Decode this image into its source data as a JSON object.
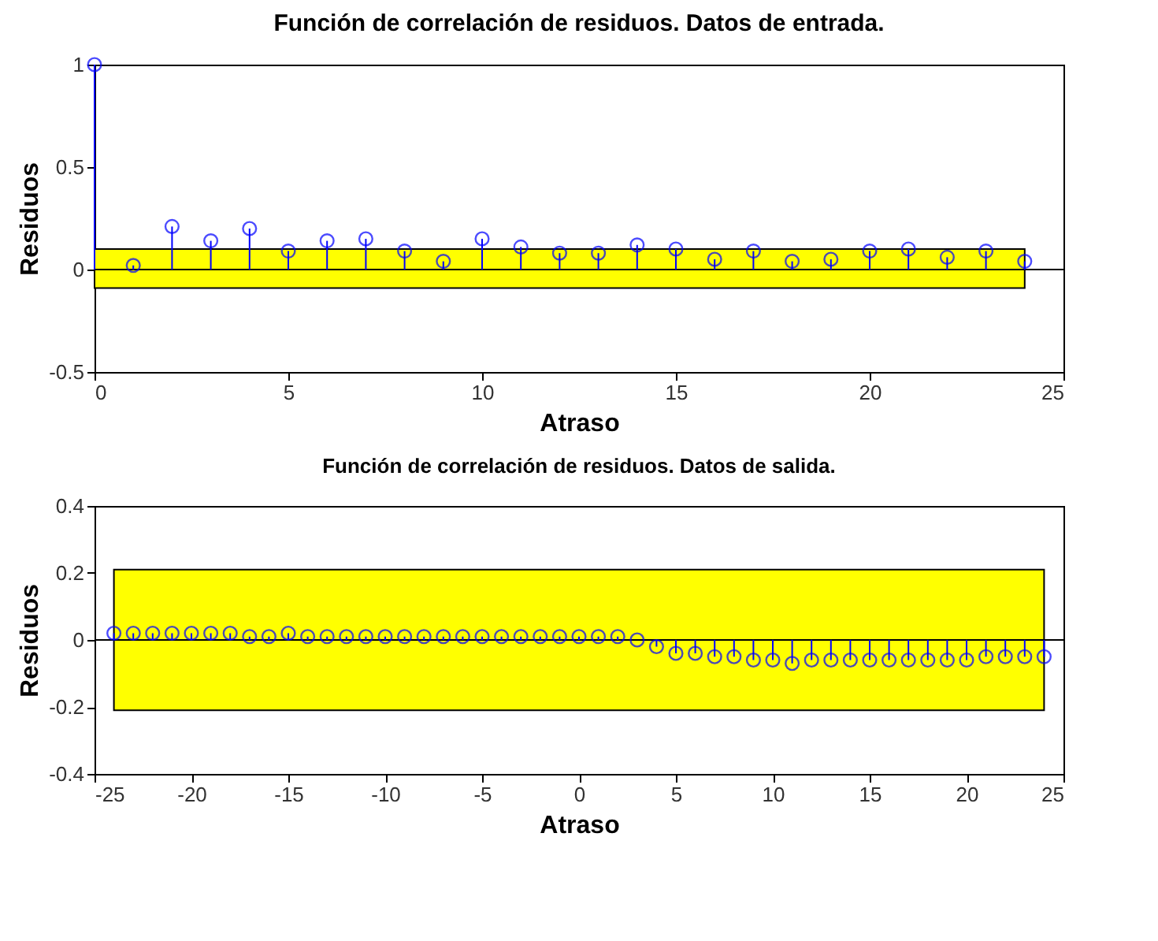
{
  "chart_data": [
    {
      "type": "lollipop",
      "title": "Función de correlación de residuos. Datos de entrada.",
      "xlabel": "Atraso",
      "ylabel": "Residuos",
      "xlim": [
        0,
        25
      ],
      "xticks": [
        0,
        5,
        10,
        15,
        20,
        25
      ],
      "ylim": [
        -0.5,
        1
      ],
      "yticks": [
        -0.5,
        0,
        0.5,
        1
      ],
      "marker": "circle",
      "x": [
        0,
        1,
        2,
        3,
        4,
        5,
        6,
        7,
        8,
        9,
        10,
        11,
        12,
        13,
        14,
        15,
        16,
        17,
        18,
        19,
        20,
        21,
        22,
        23,
        24
      ],
      "series": [
        {
          "color": "#0000ff",
          "values": [
            1,
            0.02,
            0.21,
            0.14,
            0.2,
            0.09,
            0.14,
            0.15,
            0.09,
            0.04,
            0.15,
            0.11,
            0.08,
            0.08,
            0.12,
            0.1,
            0.05,
            0.09,
            0.04,
            0.05,
            0.09,
            0.1,
            0.06,
            0.09,
            0.04
          ]
        }
      ],
      "bands": [
        {
          "axis": "y",
          "from": -0.09,
          "to": 0.1,
          "color": "#ffff00"
        }
      ]
    },
    {
      "type": "lollipop",
      "title": "Función de correlación de residuos. Datos de salida.",
      "xlabel": "Atraso",
      "ylabel": "Residuos",
      "xlim": [
        -25,
        25
      ],
      "xticks": [
        -25,
        -20,
        -15,
        -10,
        -5,
        0,
        5,
        10,
        15,
        20,
        25
      ],
      "ylim": [
        -0.4,
        0.4
      ],
      "yticks": [
        -0.4,
        -0.2,
        0,
        0.2,
        0.4
      ],
      "marker": "circle",
      "x": [
        -24,
        -23,
        -22,
        -21,
        -20,
        -19,
        -18,
        -17,
        -16,
        -15,
        -14,
        -13,
        -12,
        -11,
        -10,
        -9,
        -8,
        -7,
        -6,
        -5,
        -4,
        -3,
        -2,
        -1,
        0,
        1,
        2,
        3,
        4,
        5,
        6,
        7,
        8,
        9,
        10,
        11,
        12,
        13,
        14,
        15,
        16,
        17,
        18,
        19,
        20,
        21,
        22,
        23,
        24
      ],
      "series": [
        {
          "color": "#0000ff",
          "values": [
            0.02,
            0.02,
            0.02,
            0.02,
            0.02,
            0.02,
            0.02,
            0.01,
            0.01,
            0.02,
            0.01,
            0.01,
            0.01,
            0.01,
            0.01,
            0.01,
            0.01,
            0.01,
            0.01,
            0.01,
            0.01,
            0.01,
            0.01,
            0.01,
            0.01,
            0.01,
            0.01,
            0,
            -0.02,
            -0.04,
            -0.04,
            -0.05,
            -0.05,
            -0.06,
            -0.06,
            -0.07,
            -0.06,
            -0.06,
            -0.06,
            -0.06,
            -0.06,
            -0.06,
            -0.06,
            -0.06,
            -0.06,
            -0.05,
            -0.05,
            -0.05,
            -0.05
          ]
        }
      ],
      "bands": [
        {
          "axis": "y",
          "from": -0.21,
          "to": 0.21,
          "color": "#ffff00"
        }
      ]
    }
  ]
}
